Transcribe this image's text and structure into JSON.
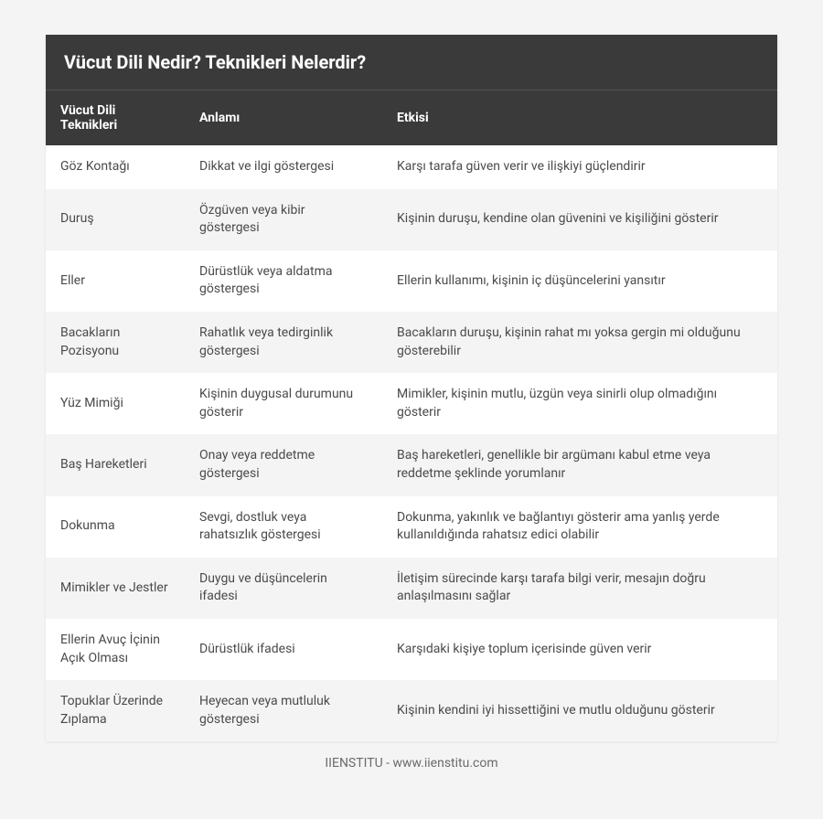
{
  "table": {
    "title": "Vücut Dili Nedir? Teknikleri Nelerdir?",
    "columns": [
      "Vücut Dili Teknikleri",
      "Anlamı",
      "Etkisi"
    ],
    "column_widths_pct": [
      19,
      27,
      54
    ],
    "rows": [
      [
        "Göz Kontağı",
        "Dikkat ve ilgi göstergesi",
        "Karşı tarafa güven verir ve ilişkiyi güçlendirir"
      ],
      [
        "Duruş",
        "Özgüven veya kibir göstergesi",
        "Kişinin duruşu, kendine olan güvenini ve kişiliğini gösterir"
      ],
      [
        "Eller",
        "Dürüstlük veya aldatma göstergesi",
        "Ellerin kullanımı, kişinin iç düşüncelerini yansıtır"
      ],
      [
        "Bacakların Pozisyonu",
        "Rahatlık veya tedirginlik göstergesi",
        "Bacakların duruşu, kişinin rahat mı yoksa gergin mi olduğunu gösterebilir"
      ],
      [
        "Yüz Mimiği",
        "Kişinin duygusal durumunu gösterir",
        "Mimikler, kişinin mutlu, üzgün veya sinirli olup olmadığını gösterir"
      ],
      [
        "Baş Hareketleri",
        "Onay veya reddetme göstergesi",
        "Baş hareketleri, genellikle bir argümanı kabul etme veya reddetme şeklinde yorumlanır"
      ],
      [
        "Dokunma",
        "Sevgi, dostluk veya rahatsızlık göstergesi",
        "Dokunma, yakınlık ve bağlantıyı gösterir ama yanlış yerde kullanıldığında rahatsız edici olabilir"
      ],
      [
        "Mimikler ve Jestler",
        "Duygu ve düşüncelerin ifadesi",
        "İletişim sürecinde karşı tarafa bilgi verir, mesajın doğru anlaşılmasını sağlar"
      ],
      [
        "Ellerin Avuç İçinin Açık Olması",
        "Dürüstlük ifadesi",
        "Karşıdaki kişiye toplum içerisinde güven verir"
      ],
      [
        "Topuklar Üzerinde Zıplama",
        "Heyecan veya mutluluk göstergesi",
        "Kişinin kendini iyi hissettiğini ve mutlu olduğunu gösterir"
      ]
    ],
    "title_fontsize": 20,
    "header_fontsize": 14,
    "cell_fontsize": 14,
    "title_bg": "#3a3a3a",
    "header_bg": "#3a3a3a",
    "header_text_color": "#ffffff",
    "row_odd_bg": "#ffffff",
    "row_even_bg": "#f4f4f4",
    "cell_text_color": "#4a4a4a",
    "page_bg": "#f4f4f4"
  },
  "footer": {
    "text": "IIENSTITU - www.iienstitu.com",
    "color": "#6b6b6b",
    "fontsize": 14
  }
}
